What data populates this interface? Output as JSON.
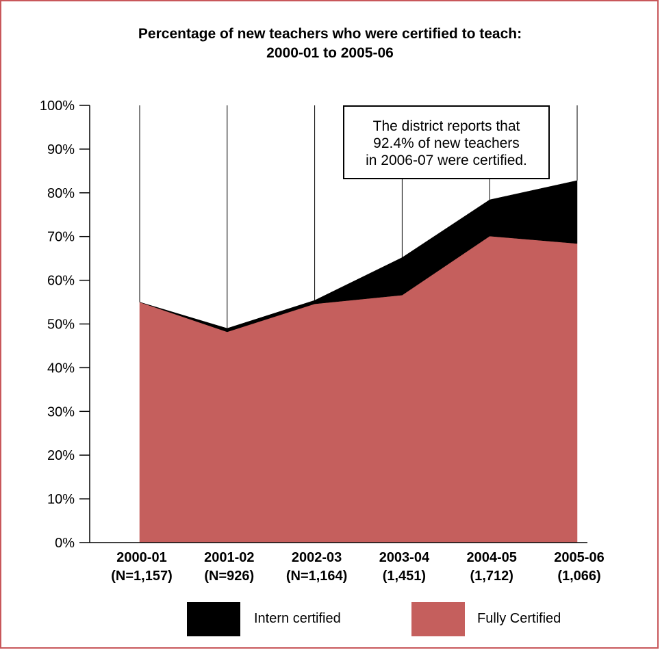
{
  "chart_data": {
    "type": "area",
    "title": [
      "Percentage of new teachers who were certified to teach:",
      "2000-01 to 2005-06"
    ],
    "categories": [
      [
        "2000-01",
        "(N=1,157)"
      ],
      [
        "2001-02",
        "(N=926)"
      ],
      [
        "2002-03",
        "(N=1,164)"
      ],
      [
        "2003-04",
        "(1,451)"
      ],
      [
        "2004-05",
        "(1,712)"
      ],
      [
        "2005-06",
        "(1,066)"
      ]
    ],
    "y_ticks": [
      "0%",
      "10%",
      "20%",
      "30%",
      "40%",
      "50%",
      "60%",
      "70%",
      "80%",
      "90%",
      "100%"
    ],
    "ylim": [
      0,
      100
    ],
    "stacked": true,
    "series": [
      {
        "name": "Fully Certified",
        "color": "#c55f5d",
        "values": [
          55.0,
          48.2,
          54.6,
          56.6,
          70.1,
          68.4
        ]
      },
      {
        "name": "Intern certified",
        "color": "#000000",
        "values": [
          0.0,
          0.8,
          0.8,
          8.6,
          8.3,
          14.4
        ]
      }
    ],
    "annotation": [
      "The district reports that",
      "92.4% of new teachers",
      "in 2006-07 were certified."
    ],
    "legend": [
      {
        "label": "Intern certified",
        "color": "#000000"
      },
      {
        "label": "Fully Certified",
        "color": "#c55f5d"
      }
    ],
    "legend_position": "bottom"
  }
}
